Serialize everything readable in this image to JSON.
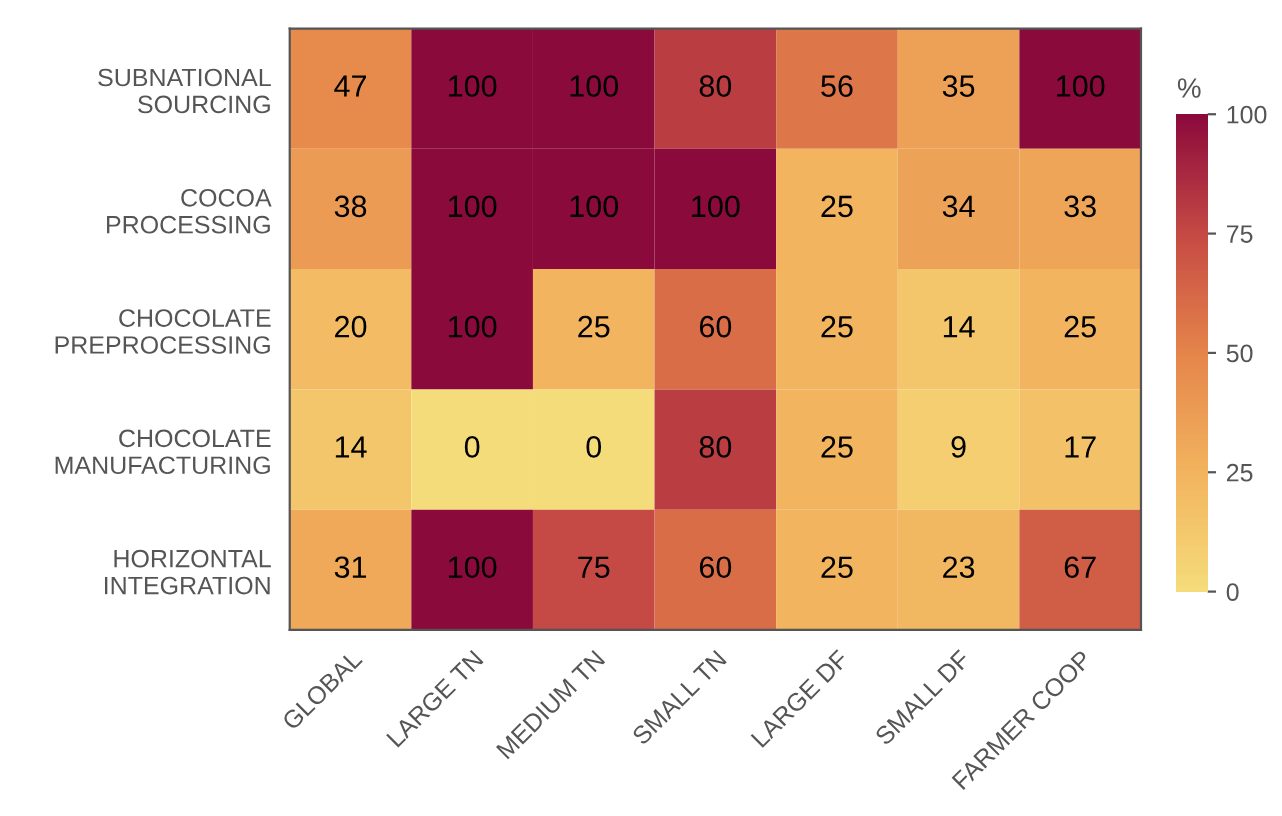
{
  "chart_data": {
    "type": "heatmap",
    "categories": [
      "GLOBAL",
      "LARGE TN",
      "MEDIUM TN",
      "SMALL TN",
      "LARGE DF",
      "SMALL DF",
      "FARMER COOP"
    ],
    "y_categories": [
      "SUBNATIONAL\nSOURCING",
      "COCOA\nPROCESSING",
      "CHOCOLATE\nPREPROCESSING",
      "CHOCOLATE\nMANUFACTURING",
      "HORIZONTAL\nINTEGRATION"
    ],
    "cells": [
      [
        47,
        100,
        100,
        80,
        56,
        35,
        100
      ],
      [
        38,
        100,
        100,
        100,
        25,
        34,
        33
      ],
      [
        20,
        100,
        25,
        60,
        25,
        14,
        25
      ],
      [
        14,
        0,
        0,
        80,
        25,
        9,
        17
      ],
      [
        31,
        100,
        75,
        60,
        25,
        23,
        67
      ]
    ],
    "data_labels": true,
    "clabel": "%",
    "clim": [
      0,
      100
    ],
    "cticks": [
      0,
      25,
      50,
      75,
      100
    ]
  }
}
